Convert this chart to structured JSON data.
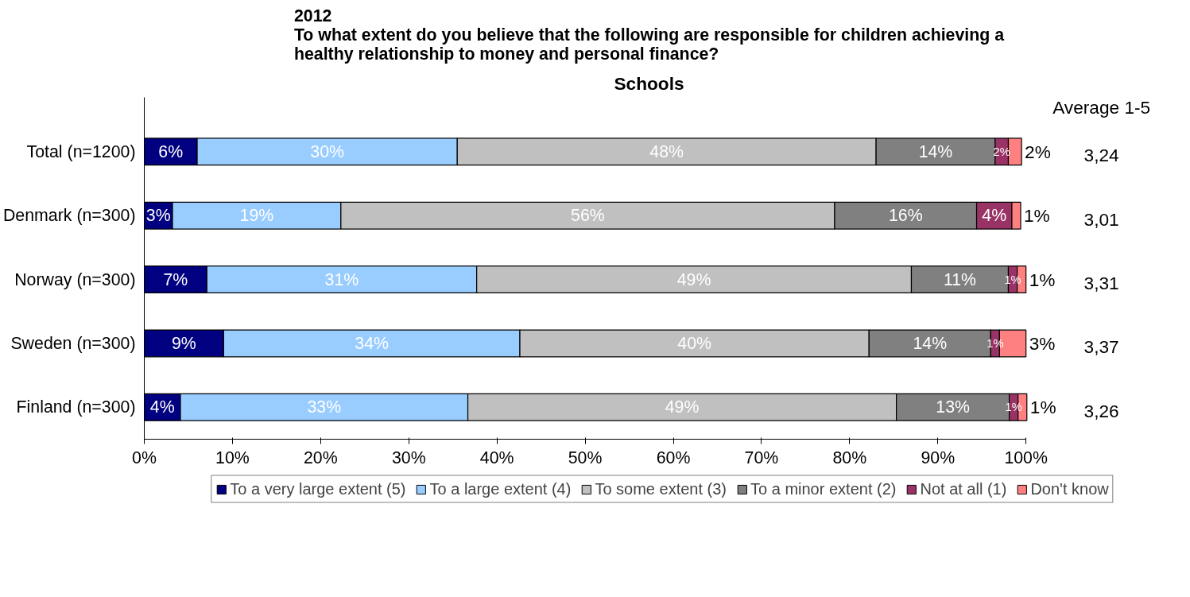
{
  "chart_data": {
    "type": "bar",
    "orientation": "horizontal",
    "stacked": true,
    "title": "2012\nTo what extent do you believe that the following are responsible for children achieving a\nhealthy relationship to money and personal finance?",
    "subtitle": "Schools",
    "categories": [
      "Total (n=1200)",
      "Denmark (n=300)",
      "Norway (n=300)",
      "Sweden (n=300)",
      "Finland (n=300)"
    ],
    "series": [
      {
        "name": "To a very large extent (5)",
        "color": "#000080",
        "values": [
          6.0,
          3.2,
          7.1,
          9.0,
          4.1
        ],
        "value_labels": [
          "6%",
          "3%",
          "7%",
          "9%",
          "4%"
        ]
      },
      {
        "name": "To a large extent (4)",
        "color": "#99ccff",
        "values": [
          29.5,
          19.1,
          30.6,
          33.6,
          32.6
        ],
        "value_labels": [
          "30%",
          "19%",
          "31%",
          "34%",
          "33%"
        ]
      },
      {
        "name": "To some extent (3)",
        "color": "#c0c0c0",
        "values": [
          47.5,
          56.0,
          49.3,
          39.6,
          48.6
        ],
        "value_labels": [
          "48%",
          "56%",
          "49%",
          "40%",
          "49%"
        ]
      },
      {
        "name": "To a minor extent (2)",
        "color": "#808080",
        "values": [
          13.5,
          16.1,
          11.0,
          13.8,
          12.8
        ],
        "value_labels": [
          "14%",
          "16%",
          "11%",
          "14%",
          "13%"
        ]
      },
      {
        "name": "Not at all (1)",
        "color": "#993366",
        "values": [
          1.5,
          4.0,
          1.0,
          1.0,
          1.0
        ],
        "value_labels": [
          "2%",
          "4%",
          "1%",
          "1%",
          "1%"
        ]
      },
      {
        "name": "Don't know",
        "color": "#ff8080",
        "values": [
          1.5,
          1.0,
          1.0,
          3.0,
          1.0
        ],
        "value_labels": [
          "2%",
          "1%",
          "1%",
          "3%",
          "1%"
        ]
      }
    ],
    "xlim": [
      0,
      100
    ],
    "xticks": [
      {
        "value": 0,
        "label": "0%"
      },
      {
        "value": 10,
        "label": "10%"
      },
      {
        "value": 20,
        "label": "20%"
      },
      {
        "value": 30,
        "label": "30%"
      },
      {
        "value": 40,
        "label": "40%"
      },
      {
        "value": 50,
        "label": "50%"
      },
      {
        "value": 60,
        "label": "60%"
      },
      {
        "value": 70,
        "label": "70%"
      },
      {
        "value": 80,
        "label": "80%"
      },
      {
        "value": 90,
        "label": "90%"
      },
      {
        "value": 100,
        "label": "100%"
      }
    ],
    "annotations": [
      "Average 1-5",
      "3,24",
      "3,01",
      "3,31",
      "3,37",
      "3,26"
    ],
    "legend": "bottom",
    "grid": false
  }
}
